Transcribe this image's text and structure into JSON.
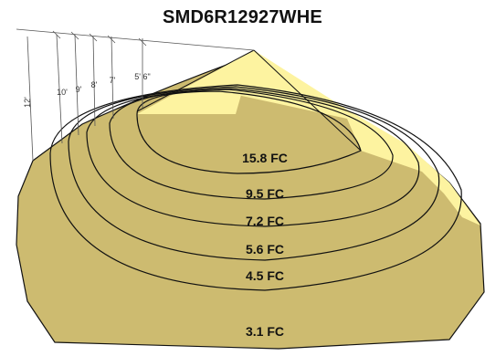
{
  "title": "SMD6R12927WHE",
  "heights": [
    "12'",
    "10'",
    "9'",
    "8'",
    "7'",
    "5' 6\""
  ],
  "footcandle_levels": [
    "15.8 FC",
    "9.5 FC",
    "7.2 FC",
    "5.6 FC",
    "4.5 FC",
    "3.1 FC"
  ],
  "colors": {
    "light_cone": "#fdf3a0",
    "floor_plane": "#cdbb70",
    "outline": "#111111"
  }
}
